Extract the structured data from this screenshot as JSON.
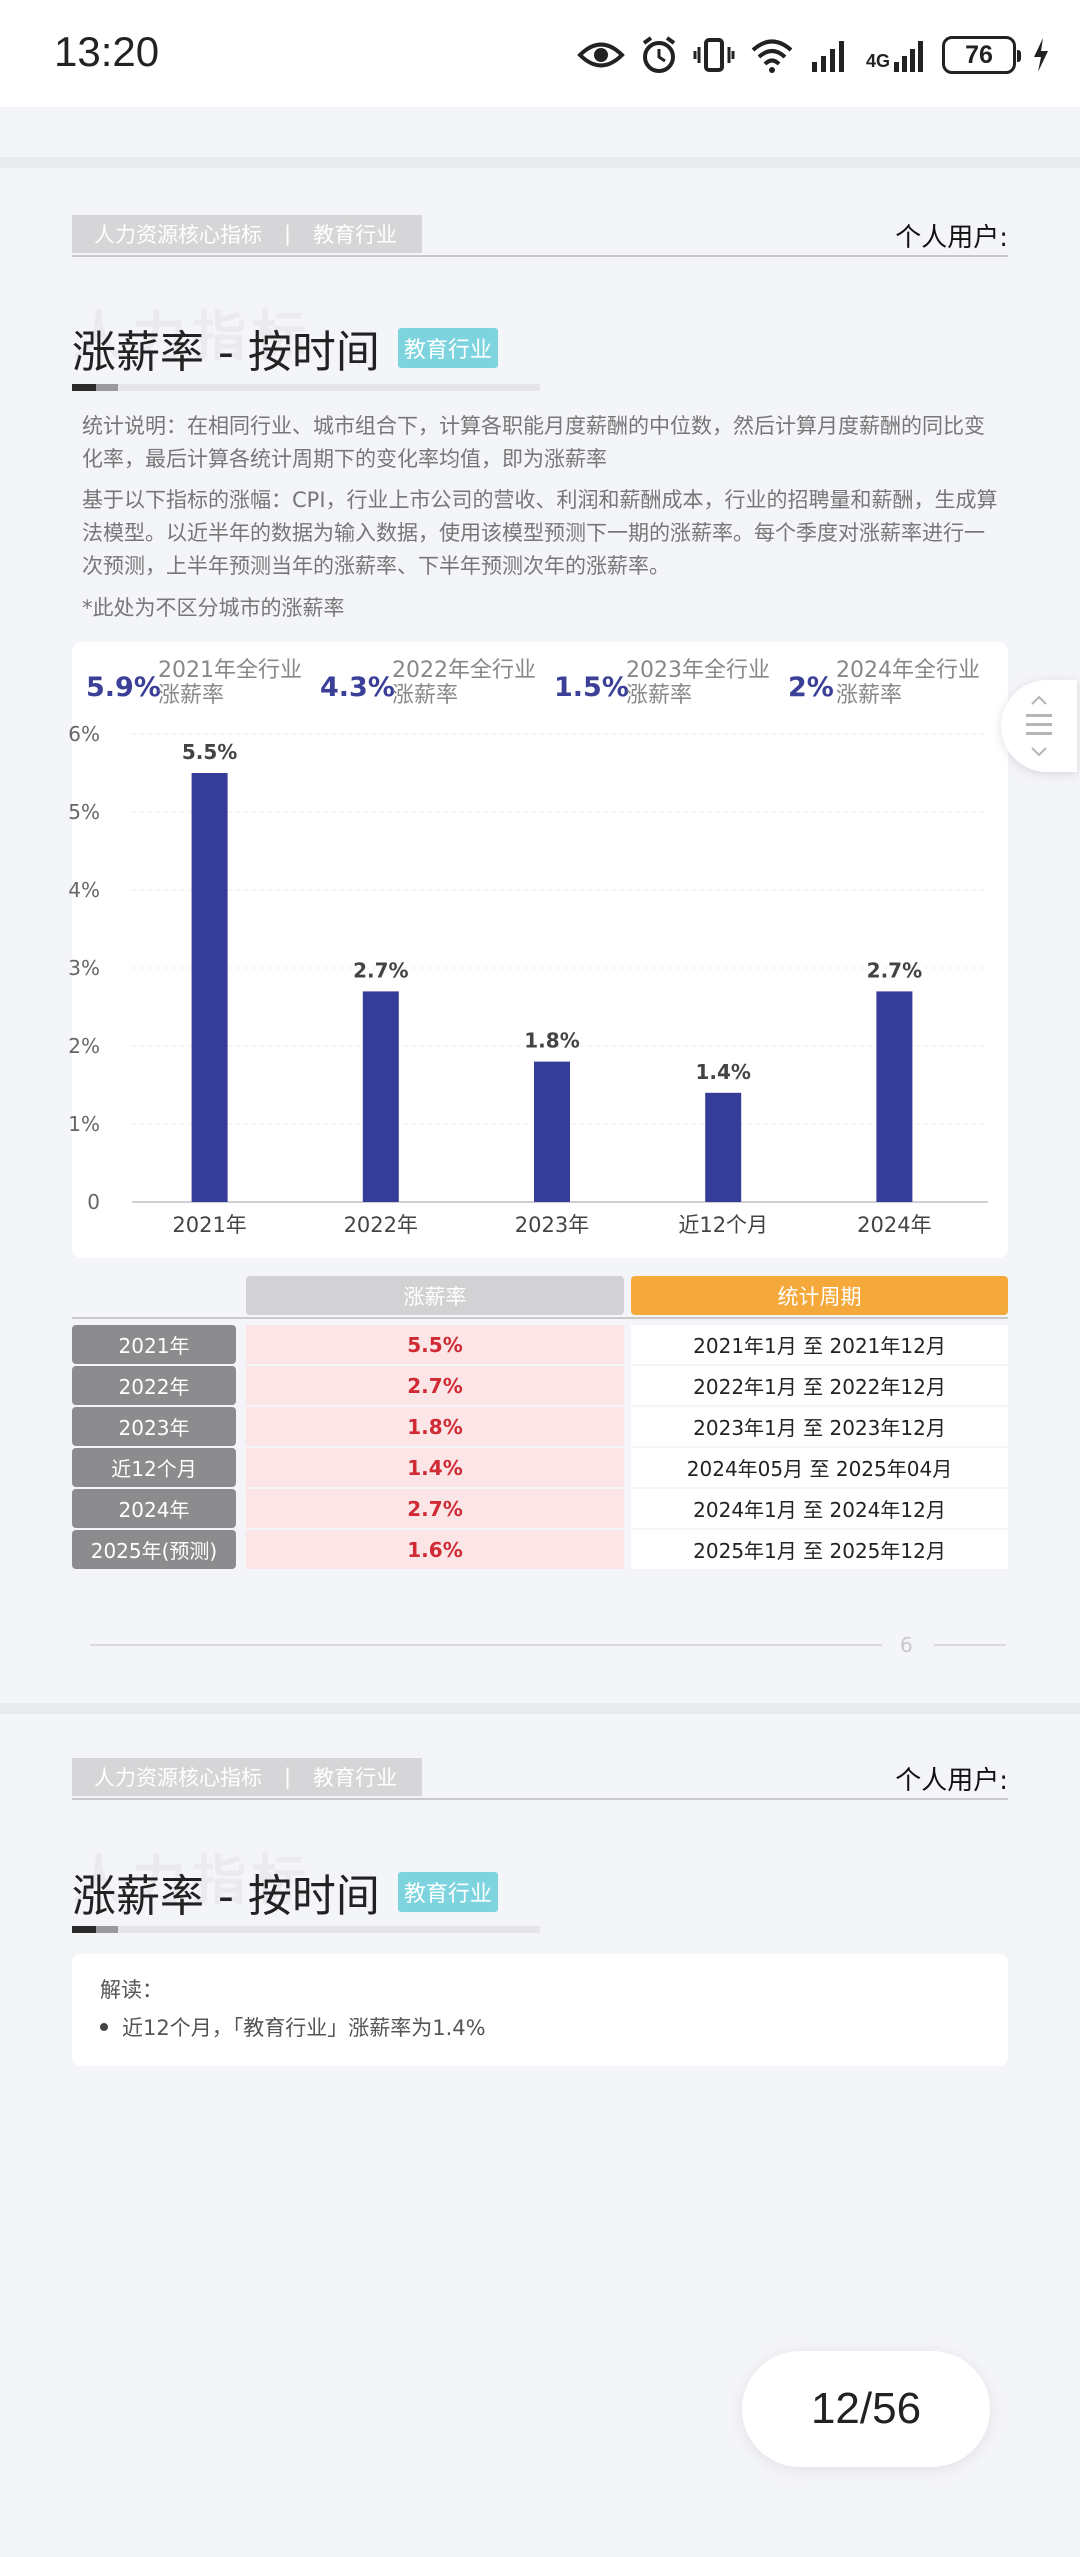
{
  "status_bar": {
    "time": "13:20",
    "network_label": "4G",
    "battery": "76",
    "icons": [
      "eye-icon",
      "alarm-icon",
      "vibrate-icon",
      "wifi-icon",
      "signal-icon",
      "signal-4g-icon",
      "battery-icon",
      "charging-icon"
    ]
  },
  "page1": {
    "header": {
      "category": "人力资源核心指标",
      "divider": "|",
      "industry": "教育行业",
      "user_label": "个人用户:"
    },
    "watermark": "人力指标",
    "title": "涨薪率 - 按时间",
    "badge": "教育行业",
    "desc1": "统计说明：在相同行业、城市组合下，计算各职能月度薪酬的中位数，然后计算月度薪酬的同比变化率，最后计算各统计周期下的变化率均值，即为涨薪率",
    "desc2": "基于以下指标的涨幅：CPI，行业上市公司的营收、利润和薪酬成本，行业的招聘量和薪酬，生成算法模型。以近半年的数据为输入数据，使用该模型预测下一期的涨薪率。每个季度对涨薪率进行一次预测，上半年预测当年的涨薪率、下半年预测次年的涨薪率。",
    "note": "*此处为不区分城市的涨薪率",
    "summary": [
      {
        "value": "5.9%",
        "label1": "2021年全行业",
        "label2": "涨薪率"
      },
      {
        "value": "4.3%",
        "label1": "2022年全行业",
        "label2": "涨薪率"
      },
      {
        "value": "1.5%",
        "label1": "2023年全行业",
        "label2": "涨薪率"
      },
      {
        "value": "2%",
        "label1": "2024年全行业",
        "label2": "涨薪率"
      }
    ],
    "table": {
      "col_rate": "涨薪率",
      "col_period": "统计周期",
      "rows": [
        {
          "year": "2021年",
          "rate": "5.5%",
          "period": "2021年1月 至 2021年12月"
        },
        {
          "year": "2022年",
          "rate": "2.7%",
          "period": "2022年1月 至 2022年12月"
        },
        {
          "year": "2023年",
          "rate": "1.8%",
          "period": "2023年1月 至 2023年12月"
        },
        {
          "year": "近12个月",
          "rate": "1.4%",
          "period": "2024年05月 至 2025年04月"
        },
        {
          "year": "2024年",
          "rate": "2.7%",
          "period": "2024年1月 至 2024年12月"
        },
        {
          "year": "2025年(预测)",
          "rate": "1.6%",
          "period": "2025年1月 至 2025年12月"
        }
      ]
    },
    "page_number": "6"
  },
  "chart_data": {
    "type": "bar",
    "categories": [
      "2021年",
      "2022年",
      "2023年",
      "近12个月",
      "2024年"
    ],
    "values": [
      5.5,
      2.7,
      1.8,
      1.4,
      2.7
    ],
    "value_labels": [
      "5.5%",
      "2.7%",
      "1.8%",
      "1.4%",
      "2.7%"
    ],
    "y_ticks": [
      "0",
      "1%",
      "2%",
      "3%",
      "4%",
      "5%",
      "6%"
    ],
    "ylim": [
      0,
      6
    ],
    "bar_color": "#363d98",
    "grid": true,
    "title": "",
    "xlabel": "",
    "ylabel": ""
  },
  "page2": {
    "header": {
      "category": "人力资源核心指标",
      "divider": "|",
      "industry": "教育行业",
      "user_label": "个人用户:"
    },
    "watermark": "人力指标",
    "title": "涨薪率 - 按时间",
    "badge": "教育行业",
    "interp_title": "解读：",
    "interp_item": "近12个月，「教育行业」涨薪率为1.4%"
  },
  "page_counter": "12/56",
  "colors": {
    "accent_bar": "#363d98",
    "badge": "#7dd3de",
    "period_header": "#f6a93b",
    "rate_text": "#d02a35"
  }
}
